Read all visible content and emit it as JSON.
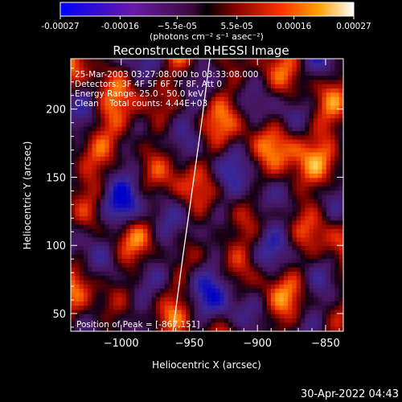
{
  "chart_data": {
    "type": "heatmap",
    "title": "Reconstructed RHESSI Image",
    "xlabel": "Heliocentric X (arcsec)",
    "ylabel": "Heliocentric Y (arcsec)",
    "xlim": [
      -1037,
      -837
    ],
    "ylim": [
      37,
      237
    ],
    "xticks": [
      -1000,
      -950,
      -900,
      -850
    ],
    "xtick_labels": [
      "−1000",
      "−950",
      "−900",
      "−850"
    ],
    "yticks": [
      50,
      100,
      150,
      200
    ],
    "ytick_labels": [
      "50",
      "100",
      "150",
      "200"
    ],
    "colorbar": {
      "min": -0.00027,
      "max": 0.00027,
      "ticks": [
        -0.00027,
        -0.00016,
        -5.5e-05,
        5.5e-05,
        0.00016,
        0.00027
      ],
      "tick_labels": [
        "-0.00027",
        "-0.00016",
        "−5.5e-05",
        "5.5e-05",
        "0.00016",
        "0.00027"
      ],
      "units": "(photons cm⁻² s⁻¹ asec⁻²)"
    },
    "annotations": [
      "25-Mar-2003 03:27:08.000 to 03:33:08.000",
      "Detectors: 3F 4F 5F 6F 7F 8F, Att 0",
      "Energy Range: 25.0 - 50.0 keV",
      "Clean    Total counts: 4.44E+03"
    ],
    "peak_label": "Position of Peak = [-867,151]",
    "peak": [
      -867,
      151
    ],
    "limb_line": [
      [
        -962,
        37
      ],
      [
        -955,
        90
      ],
      [
        -948,
        140
      ],
      [
        -941,
        190
      ],
      [
        -935,
        237
      ]
    ]
  },
  "footer": {
    "timestamp": "30-Apr-2022 04:43"
  }
}
